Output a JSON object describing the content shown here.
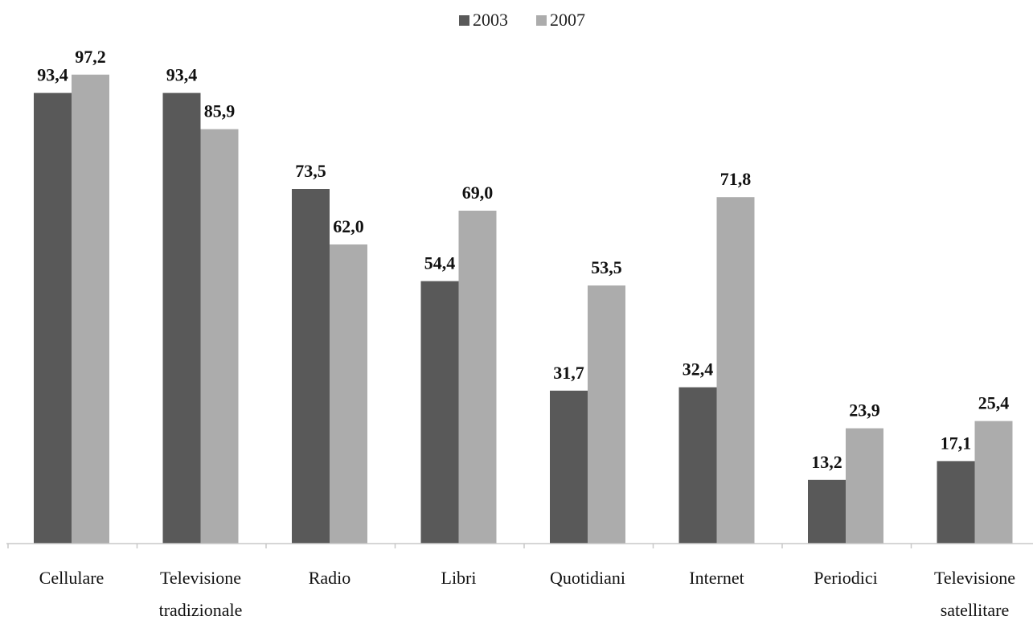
{
  "chart_data": {
    "type": "bar",
    "categories": [
      [
        "Cellulare"
      ],
      [
        "Televisione",
        "tradizionale"
      ],
      [
        "Radio"
      ],
      [
        "Libri"
      ],
      [
        "Quotidiani"
      ],
      [
        "Internet"
      ],
      [
        "Periodici"
      ],
      [
        "Televisione",
        "satellitare"
      ]
    ],
    "series": [
      {
        "name": "2003",
        "color": "#595959",
        "values": [
          93.4,
          93.4,
          73.5,
          54.4,
          31.7,
          32.4,
          13.2,
          17.1
        ],
        "labels": [
          "93,4",
          "93,4",
          "73,5",
          "54,4",
          "31,7",
          "32,4",
          "13,2",
          "17,1"
        ]
      },
      {
        "name": "2007",
        "color": "#acacac",
        "values": [
          97.2,
          85.9,
          62.0,
          69.0,
          53.5,
          71.8,
          23.9,
          25.4
        ],
        "labels": [
          "97,2",
          "85,9",
          "62,0",
          "69,0",
          "53,5",
          "71,8",
          "23,9",
          "25,4"
        ]
      }
    ],
    "ylim": [
      0,
      100
    ],
    "grid": false,
    "legend_position": "top-center"
  }
}
